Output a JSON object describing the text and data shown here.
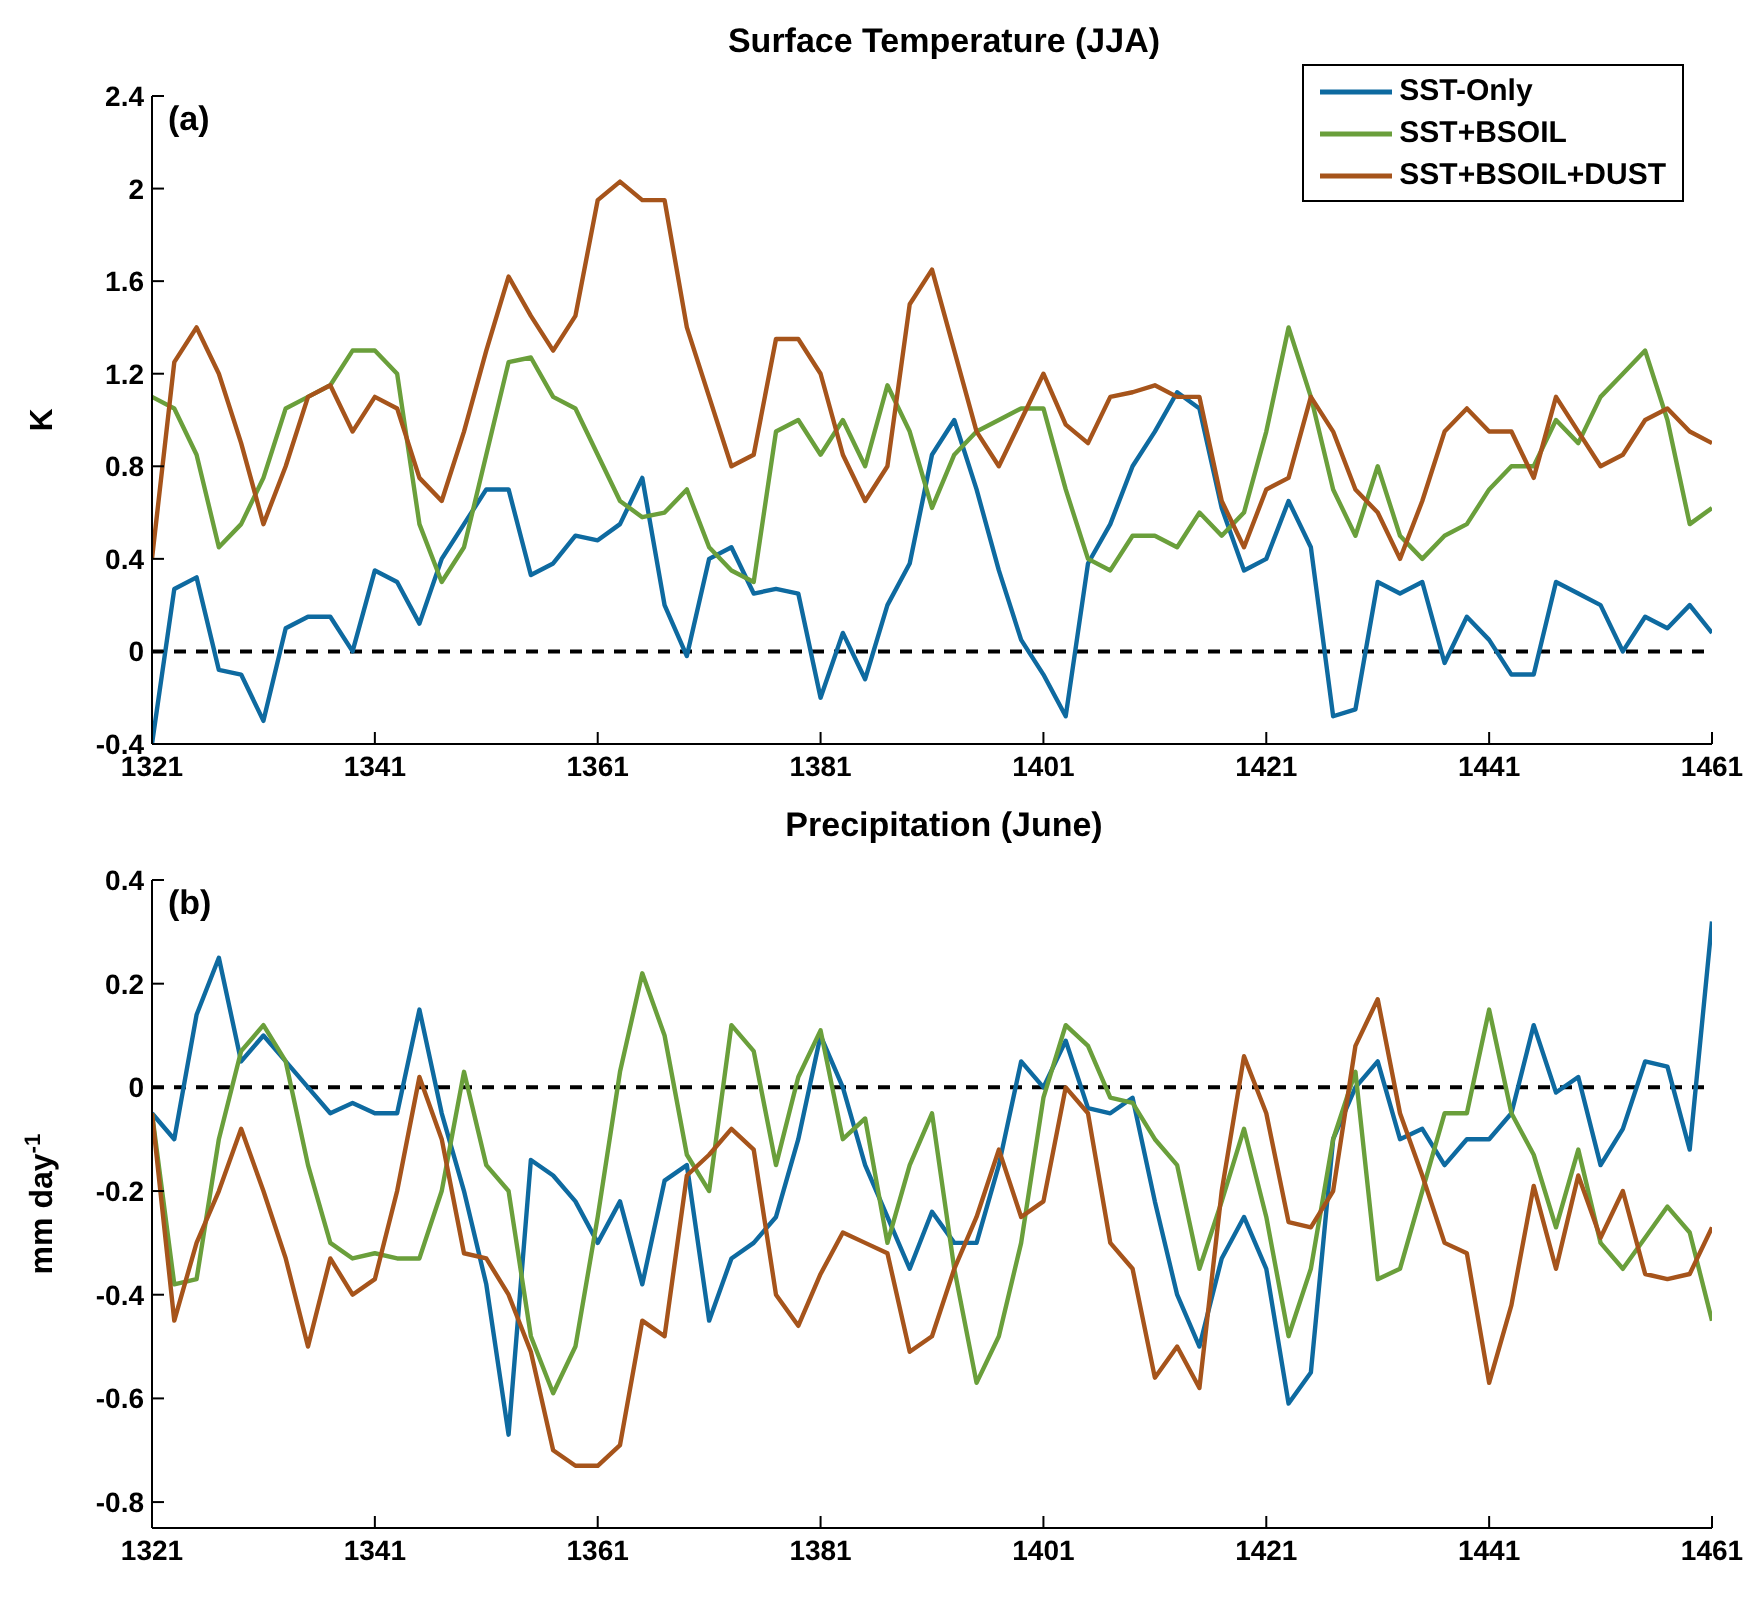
{
  "chart_data": [
    {
      "type": "line",
      "title": "Surface Temperature (JJA)",
      "ylabel": "K",
      "annotations": [
        "(a)"
      ],
      "legend": "top right",
      "x": [
        1321,
        1323,
        1325,
        1327,
        1329,
        1331,
        1333,
        1335,
        1337,
        1339,
        1341,
        1343,
        1345,
        1347,
        1349,
        1351,
        1353,
        1355,
        1357,
        1359,
        1361,
        1363,
        1365,
        1367,
        1369,
        1371,
        1373,
        1375,
        1377,
        1379,
        1381,
        1383,
        1385,
        1387,
        1389,
        1391,
        1393,
        1395,
        1397,
        1399,
        1401,
        1403,
        1405,
        1407,
        1409,
        1411,
        1413,
        1415,
        1417,
        1419,
        1421,
        1423,
        1425,
        1427,
        1429,
        1431,
        1433,
        1435,
        1437,
        1439,
        1441,
        1443,
        1445,
        1447,
        1449,
        1451,
        1453,
        1455,
        1457,
        1459,
        1461
      ],
      "xlim": [
        1321,
        1461
      ],
      "xticks": [
        1321,
        1341,
        1361,
        1381,
        1401,
        1421,
        1441,
        1461
      ],
      "ylim": [
        -0.4,
        2.4
      ],
      "yticks": [
        -0.4,
        0,
        0.4,
        0.8,
        1.2,
        1.6,
        2,
        2.4
      ],
      "ref_lines": [
        {
          "axis": "y",
          "value": 0,
          "color": "#000000",
          "line_style": "dashed"
        }
      ],
      "series": [
        {
          "name": "SST-Only",
          "color": "#0e6aa0",
          "values": [
            -0.4,
            0.27,
            0.32,
            -0.08,
            -0.1,
            -0.3,
            0.1,
            0.15,
            0.15,
            0.0,
            0.35,
            0.3,
            0.12,
            0.4,
            0.55,
            0.7,
            0.7,
            0.33,
            0.38,
            0.5,
            0.48,
            0.55,
            0.75,
            0.2,
            -0.02,
            0.4,
            0.45,
            0.25,
            0.27,
            0.25,
            -0.2,
            0.08,
            -0.12,
            0.2,
            0.38,
            0.85,
            1.0,
            0.7,
            0.35,
            0.05,
            -0.1,
            -0.28,
            0.38,
            0.55,
            0.8,
            0.95,
            1.12,
            1.05,
            0.62,
            0.35,
            0.4,
            0.65,
            0.45,
            -0.28,
            -0.25,
            0.3,
            0.25,
            0.3,
            -0.05,
            0.15,
            0.05,
            -0.1,
            -0.1,
            0.3,
            0.25,
            0.2,
            0.0,
            0.15,
            0.1,
            0.2,
            0.08
          ]
        },
        {
          "name": "SST+BSOIL",
          "color": "#6a9f3b",
          "values": [
            1.1,
            1.05,
            0.85,
            0.45,
            0.55,
            0.75,
            1.05,
            1.1,
            1.15,
            1.3,
            1.3,
            1.2,
            0.55,
            0.3,
            0.45,
            0.85,
            1.25,
            1.27,
            1.1,
            1.05,
            0.85,
            0.65,
            0.58,
            0.6,
            0.7,
            0.45,
            0.35,
            0.3,
            0.95,
            1.0,
            0.85,
            1.0,
            0.8,
            1.15,
            0.95,
            0.62,
            0.85,
            0.95,
            1.0,
            1.05,
            1.05,
            0.7,
            0.4,
            0.35,
            0.5,
            0.5,
            0.45,
            0.6,
            0.5,
            0.6,
            0.95,
            1.4,
            1.1,
            0.7,
            0.5,
            0.8,
            0.5,
            0.4,
            0.5,
            0.55,
            0.7,
            0.8,
            0.8,
            1.0,
            0.9,
            1.1,
            1.2,
            1.3,
            1.0,
            0.55,
            0.62
          ]
        },
        {
          "name": "SST+BSOIL+DUST",
          "color": "#a6541b",
          "values": [
            0.4,
            1.25,
            1.4,
            1.2,
            0.9,
            0.55,
            0.8,
            1.1,
            1.15,
            0.95,
            1.1,
            1.05,
            0.75,
            0.65,
            0.95,
            1.3,
            1.62,
            1.45,
            1.3,
            1.45,
            1.95,
            2.03,
            1.95,
            1.95,
            1.4,
            1.1,
            0.8,
            0.85,
            1.35,
            1.35,
            1.2,
            0.85,
            0.65,
            0.8,
            1.5,
            1.65,
            1.3,
            0.95,
            0.8,
            1.0,
            1.2,
            0.98,
            0.9,
            1.1,
            1.12,
            1.15,
            1.1,
            1.1,
            0.65,
            0.45,
            0.7,
            0.75,
            1.1,
            0.95,
            0.7,
            0.6,
            0.4,
            0.65,
            0.95,
            1.05,
            0.95,
            0.95,
            0.75,
            1.1,
            0.95,
            0.8,
            0.85,
            1.0,
            1.05,
            0.95,
            0.9
          ]
        }
      ]
    },
    {
      "type": "line",
      "title": "Precipitation (June)",
      "ylabel": "mm day$^{-1}$",
      "annotations": [
        "(b)"
      ],
      "x": [
        1321,
        1323,
        1325,
        1327,
        1329,
        1331,
        1333,
        1335,
        1337,
        1339,
        1341,
        1343,
        1345,
        1347,
        1349,
        1351,
        1353,
        1355,
        1357,
        1359,
        1361,
        1363,
        1365,
        1367,
        1369,
        1371,
        1373,
        1375,
        1377,
        1379,
        1381,
        1383,
        1385,
        1387,
        1389,
        1391,
        1393,
        1395,
        1397,
        1399,
        1401,
        1403,
        1405,
        1407,
        1409,
        1411,
        1413,
        1415,
        1417,
        1419,
        1421,
        1423,
        1425,
        1427,
        1429,
        1431,
        1433,
        1435,
        1437,
        1439,
        1441,
        1443,
        1445,
        1447,
        1449,
        1451,
        1453,
        1455,
        1457,
        1459,
        1461
      ],
      "xlim": [
        1321,
        1461
      ],
      "xticks": [
        1321,
        1341,
        1361,
        1381,
        1401,
        1421,
        1441,
        1461
      ],
      "ylim": [
        -0.85,
        0.4
      ],
      "yticks": [
        -0.8,
        -0.6,
        -0.4,
        -0.2,
        0,
        0.2,
        0.4
      ],
      "ref_lines": [
        {
          "axis": "y",
          "value": 0,
          "color": "#000000",
          "line_style": "dashed"
        }
      ],
      "series": [
        {
          "color": "#0e6aa0",
          "values": [
            -0.05,
            -0.1,
            0.14,
            0.25,
            0.05,
            0.1,
            0.05,
            0.0,
            -0.05,
            -0.03,
            -0.05,
            -0.05,
            0.15,
            -0.05,
            -0.2,
            -0.38,
            -0.67,
            -0.14,
            -0.17,
            -0.22,
            -0.3,
            -0.22,
            -0.38,
            -0.18,
            -0.15,
            -0.45,
            -0.33,
            -0.3,
            -0.25,
            -0.1,
            0.1,
            0.0,
            -0.15,
            -0.25,
            -0.35,
            -0.24,
            -0.3,
            -0.3,
            -0.15,
            0.05,
            0.0,
            0.09,
            -0.04,
            -0.05,
            -0.02,
            -0.22,
            -0.4,
            -0.5,
            -0.33,
            -0.25,
            -0.35,
            -0.61,
            -0.55,
            -0.1,
            0.0,
            0.05,
            -0.1,
            -0.08,
            -0.15,
            -0.1,
            -0.1,
            -0.05,
            0.12,
            -0.01,
            0.02,
            -0.15,
            -0.08,
            0.05,
            0.04,
            -0.12,
            0.32
          ]
        },
        {
          "color": "#6a9f3b",
          "values": [
            -0.05,
            -0.38,
            -0.37,
            -0.1,
            0.07,
            0.12,
            0.05,
            -0.15,
            -0.3,
            -0.33,
            -0.32,
            -0.33,
            -0.33,
            -0.2,
            0.03,
            -0.15,
            -0.2,
            -0.48,
            -0.59,
            -0.5,
            -0.25,
            0.03,
            0.22,
            0.1,
            -0.13,
            -0.2,
            0.12,
            0.07,
            -0.15,
            0.02,
            0.11,
            -0.1,
            -0.06,
            -0.3,
            -0.15,
            -0.05,
            -0.35,
            -0.57,
            -0.48,
            -0.3,
            -0.02,
            0.12,
            0.08,
            -0.02,
            -0.03,
            -0.1,
            -0.15,
            -0.35,
            -0.22,
            -0.08,
            -0.25,
            -0.48,
            -0.35,
            -0.1,
            0.03,
            -0.37,
            -0.35,
            -0.2,
            -0.05,
            -0.05,
            0.15,
            -0.05,
            -0.13,
            -0.27,
            -0.12,
            -0.3,
            -0.35,
            -0.29,
            -0.23,
            -0.28,
            -0.45
          ]
        },
        {
          "color": "#a6541b",
          "values": [
            -0.05,
            -0.45,
            -0.3,
            -0.2,
            -0.08,
            -0.2,
            -0.33,
            -0.5,
            -0.33,
            -0.4,
            -0.37,
            -0.2,
            0.02,
            -0.1,
            -0.32,
            -0.33,
            -0.4,
            -0.51,
            -0.7,
            -0.73,
            -0.73,
            -0.69,
            -0.45,
            -0.48,
            -0.17,
            -0.13,
            -0.08,
            -0.12,
            -0.4,
            -0.46,
            -0.36,
            -0.28,
            -0.3,
            -0.32,
            -0.51,
            -0.48,
            -0.35,
            -0.25,
            -0.12,
            -0.25,
            -0.22,
            0.0,
            -0.05,
            -0.3,
            -0.35,
            -0.56,
            -0.5,
            -0.58,
            -0.2,
            0.06,
            -0.05,
            -0.26,
            -0.27,
            -0.2,
            0.08,
            0.17,
            -0.05,
            -0.17,
            -0.3,
            -0.32,
            -0.57,
            -0.42,
            -0.19,
            -0.35,
            -0.17,
            -0.29,
            -0.2,
            -0.36,
            -0.37,
            -0.36,
            -0.27
          ]
        }
      ]
    }
  ]
}
